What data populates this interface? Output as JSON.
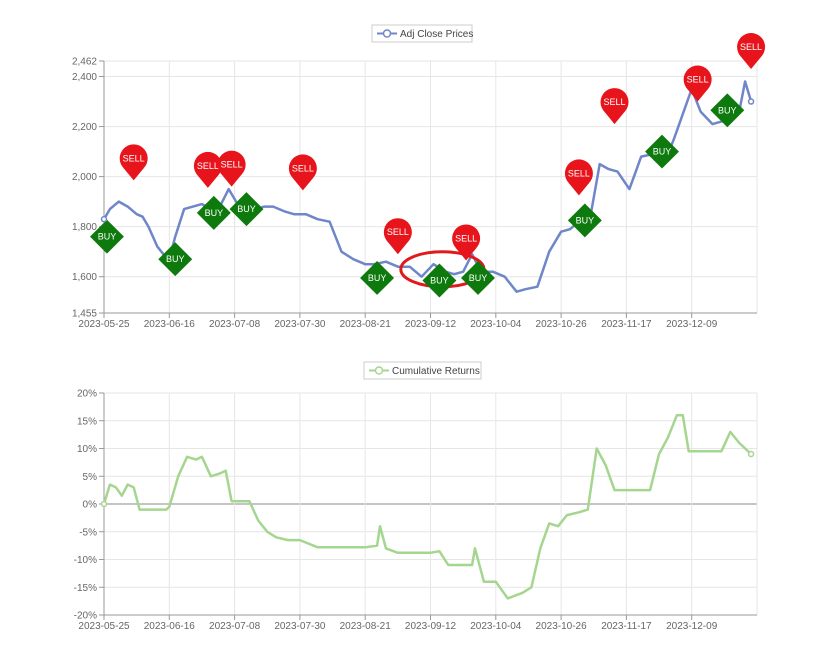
{
  "chart_data": [
    {
      "type": "line",
      "legend": {
        "label": "Adj Close Prices",
        "placement": "top-center"
      },
      "x_tick_labels": [
        "2023-05-25",
        "2023-06-16",
        "2023-07-08",
        "2023-07-30",
        "2023-08-21",
        "2023-09-12",
        "2023-10-04",
        "2023-10-26",
        "2023-11-17",
        "2023-12-09"
      ],
      "y_tick_labels": [
        "2,462",
        "2,400",
        "2,200",
        "2,000",
        "1,800",
        "1,600",
        "1,455"
      ],
      "y_tick_values": [
        2462,
        2400,
        2200,
        2000,
        1800,
        1600,
        1455
      ],
      "xlim": [
        "2023-05-25",
        "2023-12-31"
      ],
      "ylim": [
        1455,
        2462
      ],
      "grid": true,
      "line_color": "#6f86c9",
      "series": [
        {
          "x": [
            "2023-05-25",
            "2023-05-27",
            "2023-05-30",
            "2023-06-02",
            "2023-06-05",
            "2023-06-07",
            "2023-06-09",
            "2023-06-12",
            "2023-06-14",
            "2023-06-16",
            "2023-06-18",
            "2023-06-21",
            "2023-06-24",
            "2023-06-27",
            "2023-06-30",
            "2023-07-03",
            "2023-07-06",
            "2023-07-09",
            "2023-07-12",
            "2023-07-15",
            "2023-07-18",
            "2023-07-21",
            "2023-07-25",
            "2023-07-28",
            "2023-08-01",
            "2023-08-05",
            "2023-08-09",
            "2023-08-13",
            "2023-08-17",
            "2023-08-21",
            "2023-08-24",
            "2023-08-28",
            "2023-09-01",
            "2023-09-05",
            "2023-09-09",
            "2023-09-13",
            "2023-09-17",
            "2023-09-20",
            "2023-09-23",
            "2023-09-26",
            "2023-09-29",
            "2023-10-03",
            "2023-10-07",
            "2023-10-11",
            "2023-10-14",
            "2023-10-18",
            "2023-10-22",
            "2023-10-26",
            "2023-10-29",
            "2023-11-02",
            "2023-11-05",
            "2023-11-08",
            "2023-11-11",
            "2023-11-14",
            "2023-11-18",
            "2023-11-22",
            "2023-11-26",
            "2023-11-30",
            "2023-12-03",
            "2023-12-06",
            "2023-12-09",
            "2023-12-12",
            "2023-12-16",
            "2023-12-19",
            "2023-12-22",
            "2023-12-25",
            "2023-12-27",
            "2023-12-29"
          ],
          "y": [
            1830,
            1870,
            1900,
            1880,
            1850,
            1840,
            1800,
            1720,
            1690,
            1670,
            1760,
            1870,
            1880,
            1890,
            1870,
            1880,
            1950,
            1890,
            1880,
            1870,
            1880,
            1880,
            1860,
            1850,
            1850,
            1830,
            1820,
            1700,
            1670,
            1650,
            1650,
            1660,
            1640,
            1640,
            1600,
            1650,
            1620,
            1610,
            1620,
            1690,
            1620,
            1620,
            1600,
            1540,
            1550,
            1560,
            1700,
            1780,
            1790,
            1830,
            1850,
            2050,
            2030,
            2020,
            1950,
            2080,
            2090,
            2060,
            2150,
            2250,
            2350,
            2260,
            2210,
            2220,
            2240,
            2260,
            2380,
            2300
          ]
        }
      ],
      "signals": [
        {
          "label": "BUY",
          "x": "2023-05-26",
          "y": 1760
        },
        {
          "label": "SELL",
          "x": "2023-06-04",
          "y": 1985
        },
        {
          "label": "BUY",
          "x": "2023-06-18",
          "y": 1670
        },
        {
          "label": "SELL",
          "x": "2023-06-29",
          "y": 1955
        },
        {
          "label": "BUY",
          "x": "2023-07-01",
          "y": 1855
        },
        {
          "label": "SELL",
          "x": "2023-07-07",
          "y": 1960
        },
        {
          "label": "BUY",
          "x": "2023-07-12",
          "y": 1870
        },
        {
          "label": "SELL",
          "x": "2023-07-31",
          "y": 1945
        },
        {
          "label": "BUY",
          "x": "2023-08-25",
          "y": 1595
        },
        {
          "label": "SELL",
          "x": "2023-09-01",
          "y": 1690
        },
        {
          "label": "BUY",
          "x": "2023-09-15",
          "y": 1585
        },
        {
          "label": "SELL",
          "x": "2023-09-24",
          "y": 1665
        },
        {
          "label": "BUY",
          "x": "2023-09-28",
          "y": 1595
        },
        {
          "label": "SELL",
          "x": "2023-11-01",
          "y": 1925
        },
        {
          "label": "BUY",
          "x": "2023-11-03",
          "y": 1825
        },
        {
          "label": "SELL",
          "x": "2023-11-13",
          "y": 2210
        },
        {
          "label": "BUY",
          "x": "2023-11-29",
          "y": 2100
        },
        {
          "label": "SELL",
          "x": "2023-12-11",
          "y": 2300
        },
        {
          "label": "BUY",
          "x": "2023-12-21",
          "y": 2265
        },
        {
          "label": "SELL",
          "x": "2023-12-29",
          "y": 2430
        }
      ],
      "annotation_ellipse": {
        "x_center": "2023-09-16",
        "y_center": 1630,
        "x_half_days": 14,
        "y_half": 70,
        "color": "#e0191c"
      }
    },
    {
      "type": "line",
      "legend": {
        "label": "Cumulative Returns",
        "placement": "top-center"
      },
      "x_tick_labels": [
        "2023-05-25",
        "2023-06-16",
        "2023-07-08",
        "2023-07-30",
        "2023-08-21",
        "2023-09-12",
        "2023-10-04",
        "2023-10-26",
        "2023-11-17",
        "2023-12-09"
      ],
      "y_tick_labels": [
        "20%",
        "15%",
        "10%",
        "5%",
        "0%",
        "-5%",
        "-10%",
        "-15%",
        "-20%"
      ],
      "y_tick_values": [
        20,
        15,
        10,
        5,
        0,
        -5,
        -10,
        -15,
        -20
      ],
      "xlim": [
        "2023-05-25",
        "2023-12-31"
      ],
      "ylim": [
        -20,
        20
      ],
      "grid": true,
      "line_color": "#a5d68f",
      "series": [
        {
          "x": [
            "2023-05-25",
            "2023-05-27",
            "2023-05-29",
            "2023-05-31",
            "2023-06-02",
            "2023-06-04",
            "2023-06-06",
            "2023-06-10",
            "2023-06-15",
            "2023-06-16",
            "2023-06-19",
            "2023-06-22",
            "2023-06-25",
            "2023-06-27",
            "2023-06-30",
            "2023-07-03",
            "2023-07-05",
            "2023-07-07",
            "2023-07-10",
            "2023-07-13",
            "2023-07-16",
            "2023-07-19",
            "2023-07-22",
            "2023-07-26",
            "2023-07-30",
            "2023-08-05",
            "2023-08-15",
            "2023-08-21",
            "2023-08-25",
            "2023-08-26",
            "2023-08-28",
            "2023-09-01",
            "2023-09-08",
            "2023-09-12",
            "2023-09-15",
            "2023-09-18",
            "2023-09-22",
            "2023-09-26",
            "2023-09-27",
            "2023-09-30",
            "2023-10-04",
            "2023-10-08",
            "2023-10-13",
            "2023-10-16",
            "2023-10-19",
            "2023-10-22",
            "2023-10-25",
            "2023-10-28",
            "2023-11-01",
            "2023-11-04",
            "2023-11-07",
            "2023-11-10",
            "2023-11-13",
            "2023-11-17",
            "2023-11-25",
            "2023-11-28",
            "2023-12-01",
            "2023-12-04",
            "2023-12-06",
            "2023-12-08",
            "2023-12-15",
            "2023-12-19",
            "2023-12-22",
            "2023-12-25",
            "2023-12-29"
          ],
          "y": [
            0,
            3.5,
            3,
            1.5,
            3.5,
            3,
            -1,
            -1,
            -1,
            -0.5,
            5,
            8.5,
            8,
            8.5,
            5,
            5.5,
            6,
            0.5,
            0.5,
            0.5,
            -3,
            -5,
            -6,
            -6.5,
            -6.5,
            -7.8,
            -7.8,
            -7.8,
            -7.5,
            -4,
            -8,
            -8.8,
            -8.8,
            -8.8,
            -8.5,
            -11,
            -11,
            -11,
            -8,
            -14,
            -14,
            -17,
            -16,
            -15,
            -8,
            -3.5,
            -4,
            -2,
            -1.5,
            -1,
            10,
            7,
            2.5,
            2.5,
            2.5,
            9,
            12,
            16,
            16,
            9.5,
            9.5,
            9.5,
            13,
            11,
            9
          ]
        }
      ]
    }
  ]
}
